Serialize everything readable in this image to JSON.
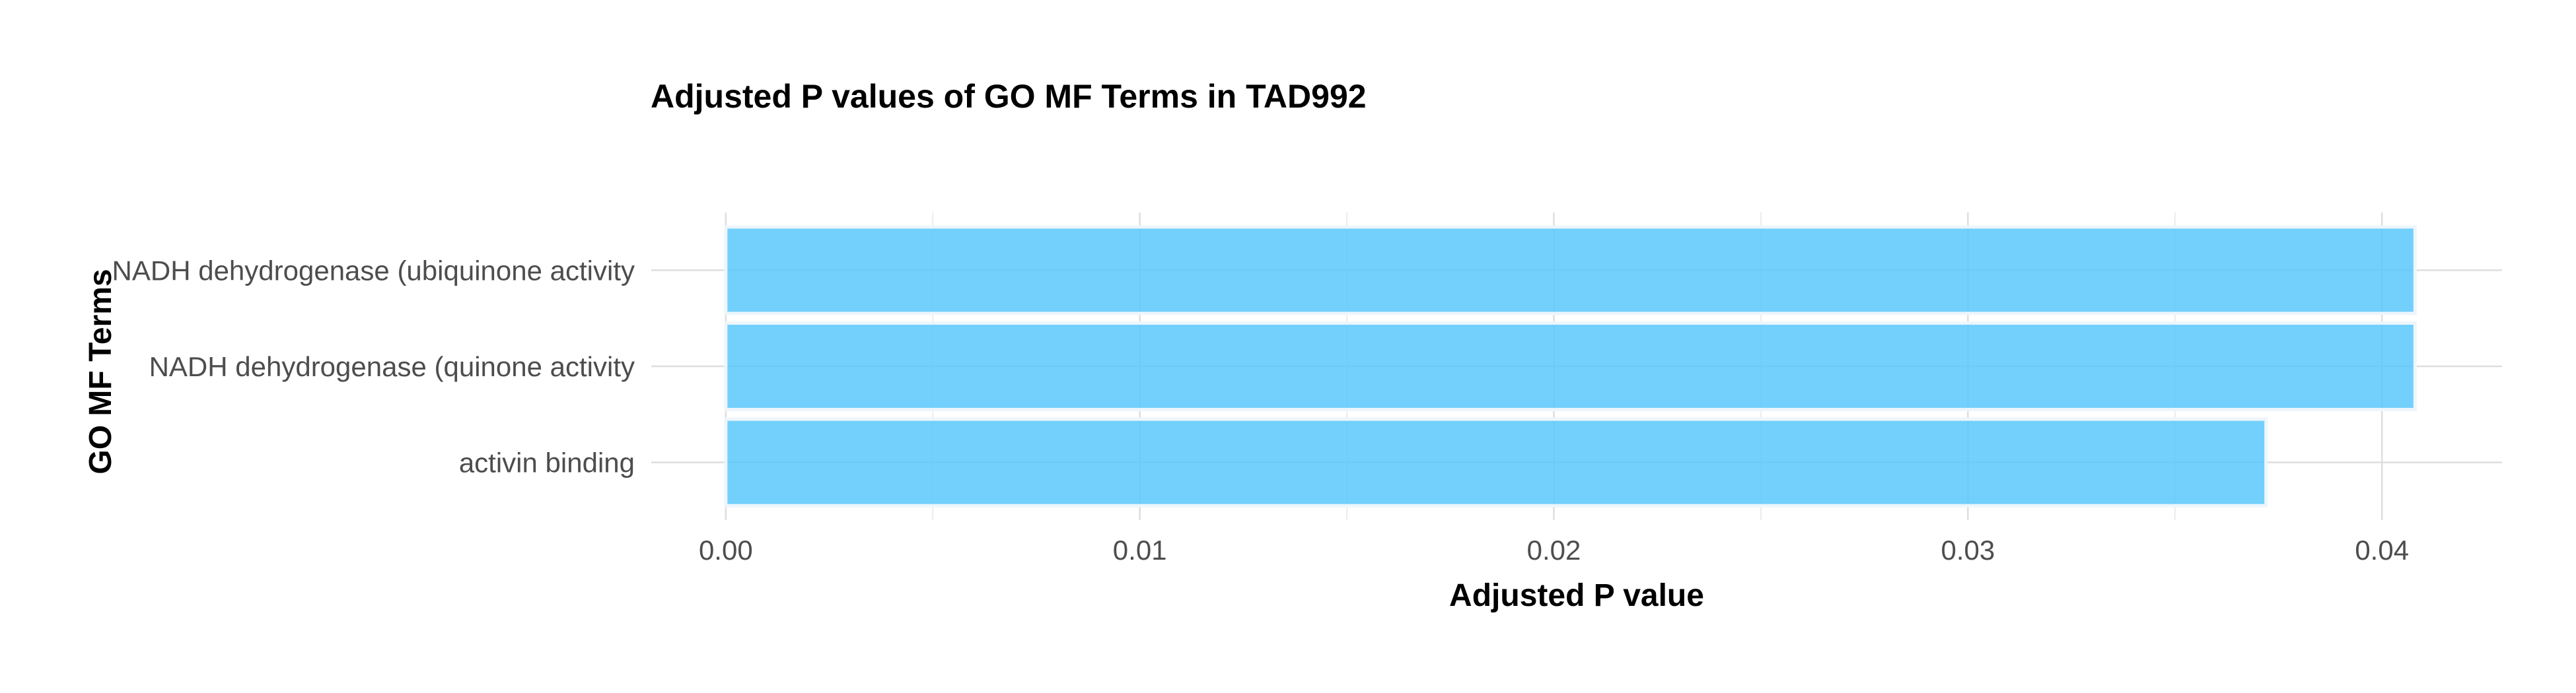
{
  "chart_data": {
    "type": "bar",
    "orientation": "horizontal",
    "title": "Adjusted P values of GO MF Terms in TAD992",
    "xlabel": "Adjusted P value",
    "ylabel": "GO MF Terms",
    "categories": [
      "NADH dehydrogenase (ubiquinone activity",
      "NADH dehydrogenase (quinone activity",
      "activin binding"
    ],
    "values": [
      0.0408,
      0.0408,
      0.0372
    ],
    "xlim": [
      -0.0018,
      0.0429
    ],
    "x_ticks": [
      0.0,
      0.01,
      0.02,
      0.03,
      0.04
    ],
    "x_tick_labels": [
      "0.00",
      "0.01",
      "0.02",
      "0.03",
      "0.04"
    ],
    "bar_color": "#5bc8fb",
    "grid": true,
    "legend": "none"
  }
}
